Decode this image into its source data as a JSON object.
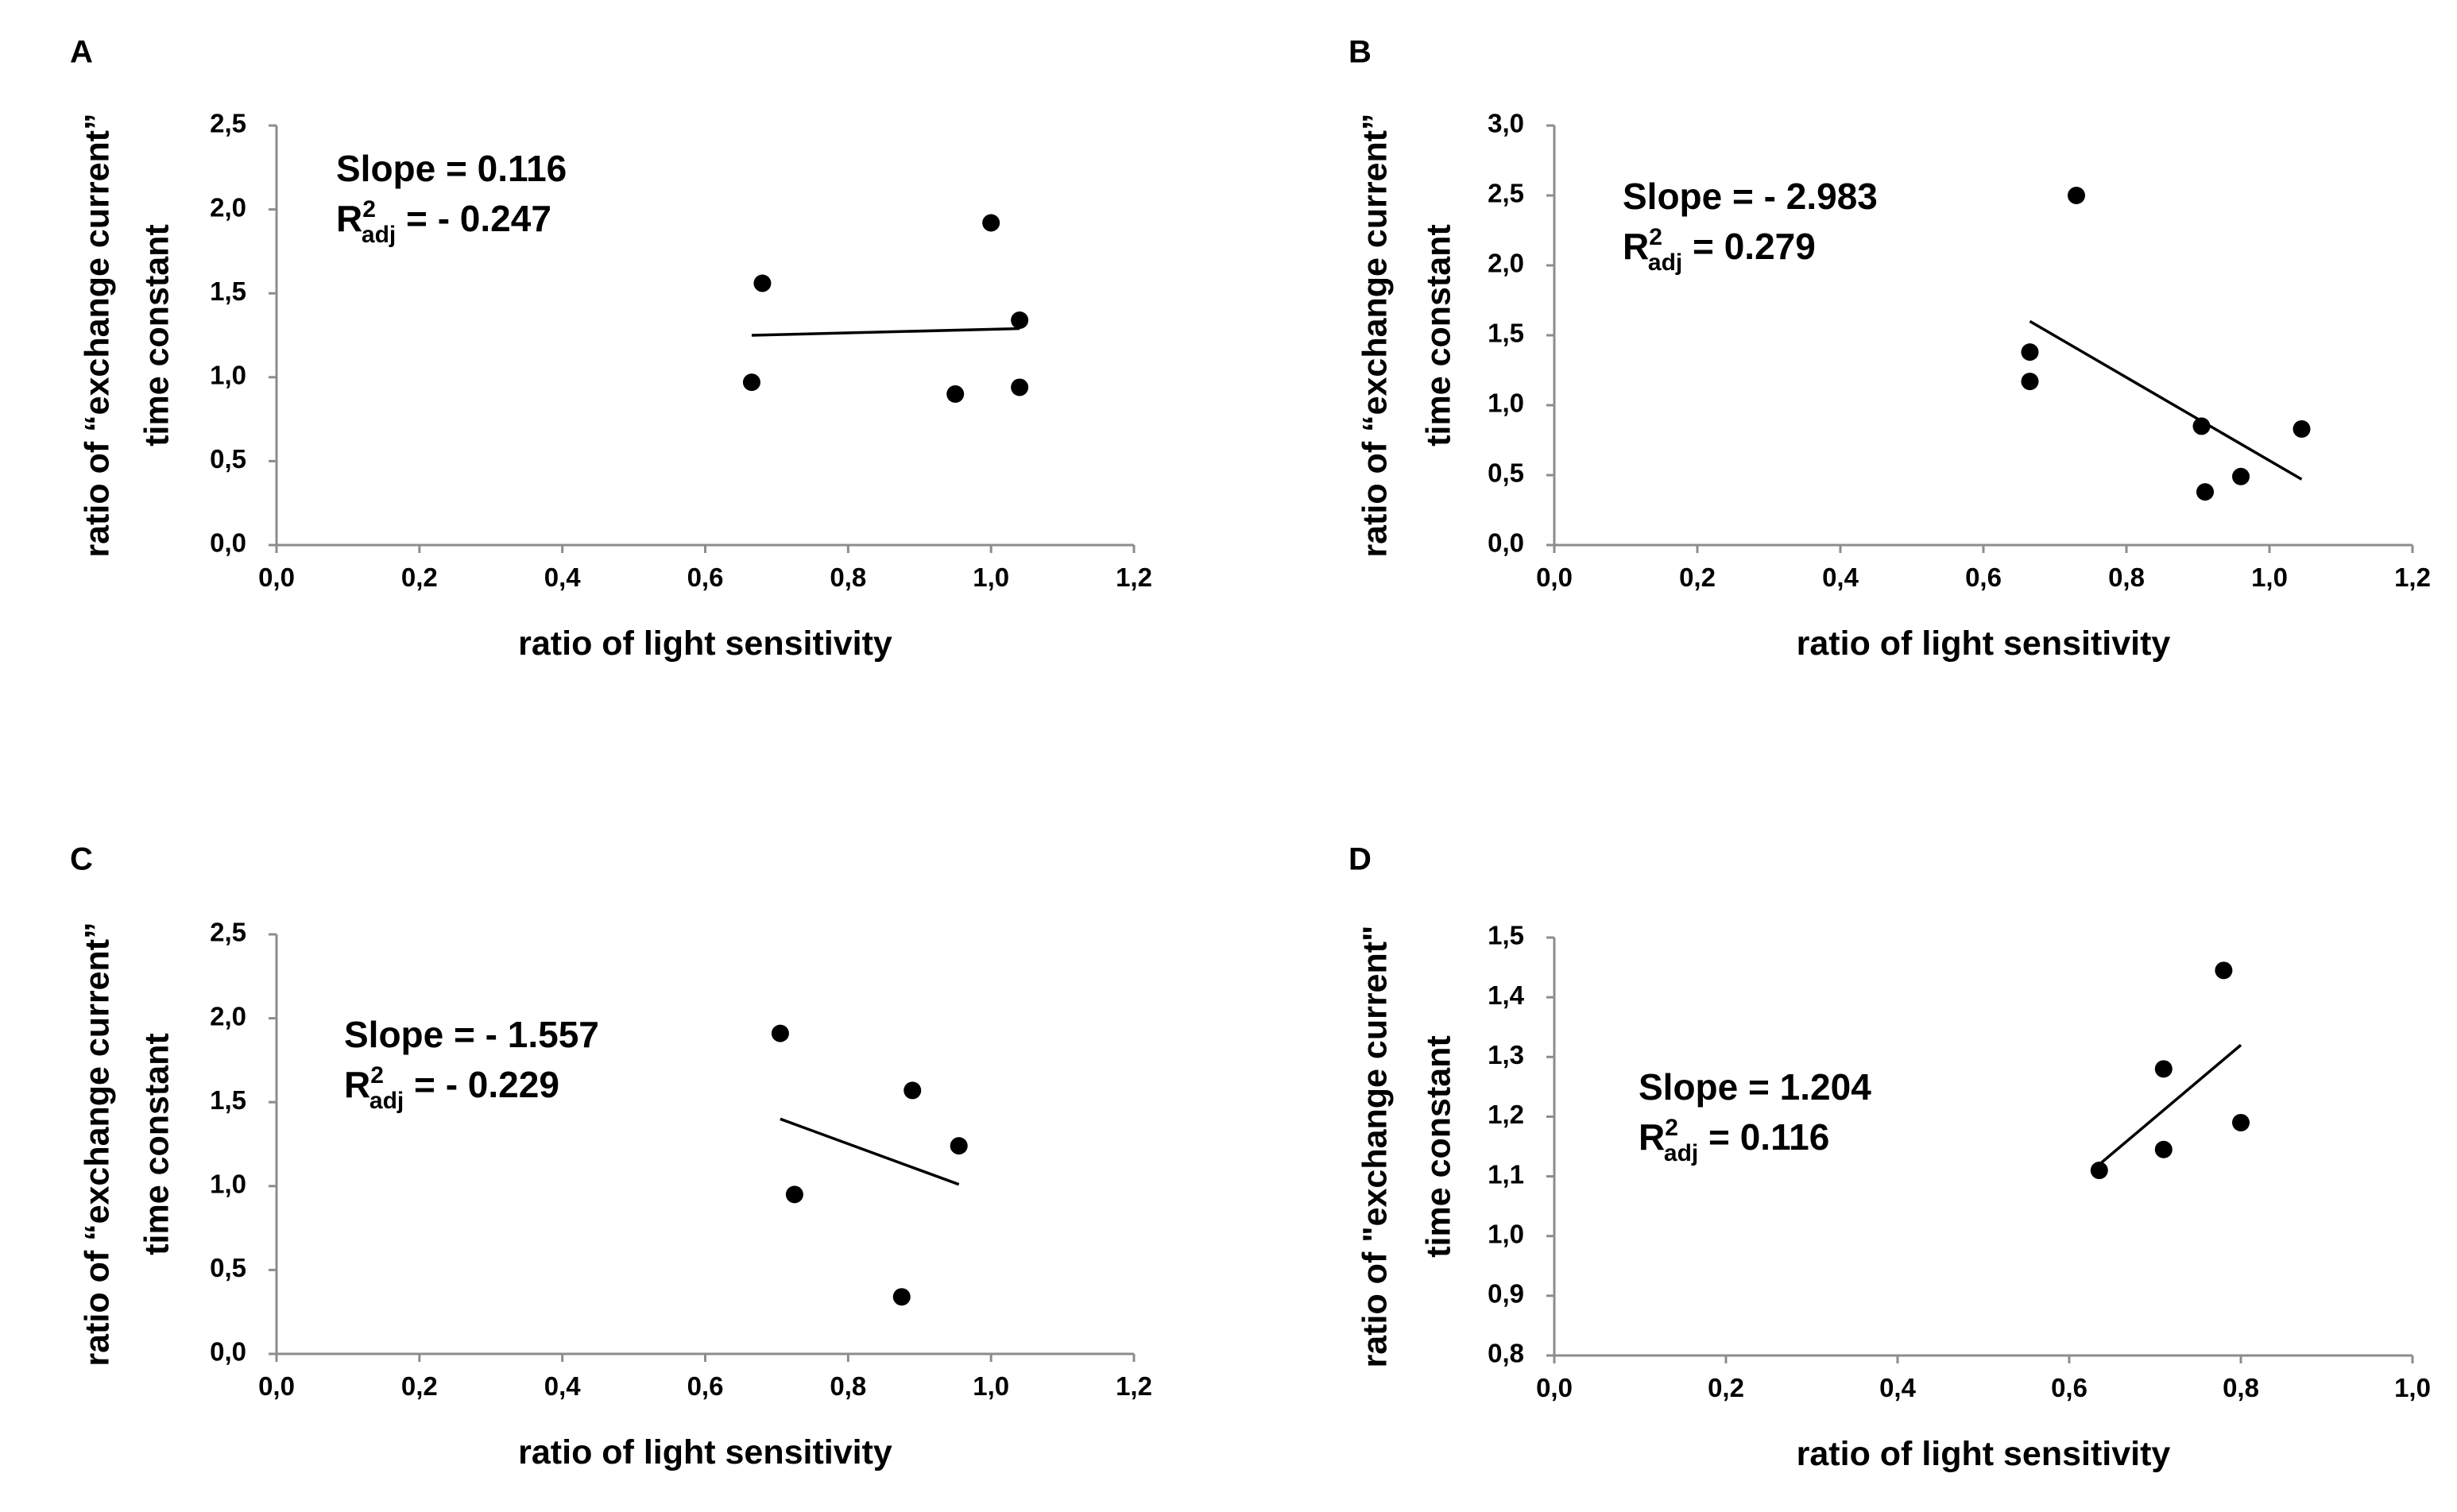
{
  "chart_data": [
    {
      "panel": "A",
      "type": "scatter",
      "xlabel": "ratio of light sensitivity",
      "ylabel_lines": [
        "ratio of “exchange current”",
        "time constant"
      ],
      "xlim": [
        0,
        1.2
      ],
      "ylim": [
        0,
        2.5
      ],
      "x_ticks": [
        "0,0",
        "0,2",
        "0,4",
        "0,6",
        "0,8",
        "1,0",
        "1,2"
      ],
      "y_ticks": [
        "0,0",
        "0,5",
        "1,0",
        "1,5",
        "2,0",
        "2,5"
      ],
      "points": [
        {
          "x": 0.665,
          "y": 0.97
        },
        {
          "x": 0.68,
          "y": 1.56
        },
        {
          "x": 0.95,
          "y": 0.9
        },
        {
          "x": 1.0,
          "y": 1.92
        },
        {
          "x": 1.04,
          "y": 1.34
        },
        {
          "x": 1.04,
          "y": 0.94
        }
      ],
      "fit": {
        "x": [
          0.665,
          1.04
        ],
        "y": [
          1.25,
          1.29
        ]
      },
      "annotation": {
        "slope": "Slope = 0.116",
        "r_main": "R",
        "r_sup": "2",
        "r_sub": "adj",
        "r_value": " = - 0.247"
      },
      "grid": false
    },
    {
      "panel": "B",
      "type": "scatter",
      "xlabel": "ratio of light sensitivity",
      "ylabel_lines": [
        "ratio of “exchange current”",
        "time constant"
      ],
      "xlim": [
        0,
        1.2
      ],
      "ylim": [
        0,
        3.0
      ],
      "x_ticks": [
        "0,0",
        "0,2",
        "0,4",
        "0,6",
        "0,8",
        "1,0",
        "1,2"
      ],
      "y_ticks": [
        "0,0",
        "0,5",
        "1,0",
        "1,5",
        "2,0",
        "2,5",
        "3,0"
      ],
      "points": [
        {
          "x": 0.665,
          "y": 1.38
        },
        {
          "x": 0.665,
          "y": 1.17
        },
        {
          "x": 0.73,
          "y": 2.5
        },
        {
          "x": 0.905,
          "y": 0.85
        },
        {
          "x": 0.91,
          "y": 0.38
        },
        {
          "x": 0.96,
          "y": 0.49
        },
        {
          "x": 1.045,
          "y": 0.83
        }
      ],
      "fit": {
        "x": [
          0.665,
          1.045
        ],
        "y": [
          1.6,
          0.47
        ]
      },
      "annotation": {
        "slope": "Slope = - 2.983",
        "r_main": "R",
        "r_sup": "2",
        "r_sub": "adj",
        "r_value": " = 0.279"
      },
      "grid": false
    },
    {
      "panel": "C",
      "type": "scatter",
      "xlabel": "ratio of light sensitivity",
      "ylabel_lines": [
        "ratio of “exchange current”",
        "time constant"
      ],
      "xlim": [
        0,
        1.2
      ],
      "ylim": [
        0,
        2.5
      ],
      "x_ticks": [
        "0,0",
        "0,2",
        "0,4",
        "0,6",
        "0,8",
        "1,0",
        "1,2"
      ],
      "y_ticks": [
        "0,0",
        "0,5",
        "1,0",
        "1,5",
        "2,0",
        "2,5"
      ],
      "points": [
        {
          "x": 0.705,
          "y": 1.91
        },
        {
          "x": 0.725,
          "y": 0.95
        },
        {
          "x": 0.875,
          "y": 0.34
        },
        {
          "x": 0.89,
          "y": 1.57
        },
        {
          "x": 0.955,
          "y": 1.24
        }
      ],
      "fit": {
        "x": [
          0.705,
          0.955
        ],
        "y": [
          1.4,
          1.01
        ]
      },
      "annotation": {
        "slope": "Slope = - 1.557",
        "r_main": "R",
        "r_sup": "2",
        "r_sub": "adj",
        "r_value": " = - 0.229"
      },
      "grid": false
    },
    {
      "panel": "D",
      "type": "scatter",
      "xlabel": "ratio of light sensitivity",
      "ylabel_lines": [
        "ratio of \"exchange current\"",
        "time constant"
      ],
      "xlim": [
        0,
        1.0
      ],
      "ylim": [
        0.8,
        1.5
      ],
      "x_ticks": [
        "0,0",
        "0,2",
        "0,4",
        "0,6",
        "0,8",
        "1,0"
      ],
      "y_ticks": [
        "0,8",
        "0,9",
        "1,0",
        "1,1",
        "1,2",
        "1,3",
        "1,4",
        "1,5"
      ],
      "points": [
        {
          "x": 0.635,
          "y": 1.11
        },
        {
          "x": 0.71,
          "y": 1.145
        },
        {
          "x": 0.71,
          "y": 1.28
        },
        {
          "x": 0.78,
          "y": 1.445
        },
        {
          "x": 0.8,
          "y": 1.19
        }
      ],
      "fit": {
        "x": [
          0.635,
          0.8
        ],
        "y": [
          1.12,
          1.32
        ]
      },
      "annotation": {
        "slope": "Slope = 1.204",
        "r_main": "R",
        "r_sup": "2",
        "r_sub": "adj",
        "r_value": " = 0.116"
      },
      "grid": false
    }
  ]
}
